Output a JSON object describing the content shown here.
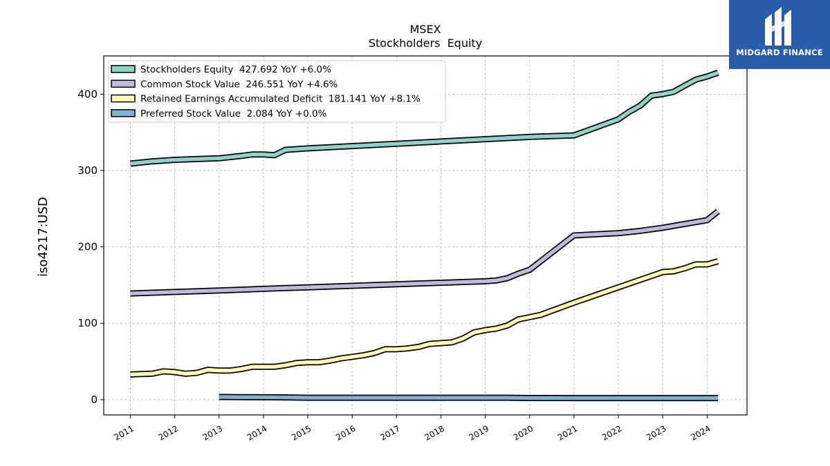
{
  "chart_data": {
    "type": "line",
    "title": "MSEX",
    "subtitle": "Stockholders  Equity",
    "ylabel": "iso4217:USD",
    "xlabel": "",
    "xlim": [
      2010.4,
      2024.9
    ],
    "ylim": [
      -20,
      450
    ],
    "x_ticks": [
      "2011",
      "2012",
      "2013",
      "2014",
      "2015",
      "2016",
      "2017",
      "2018",
      "2019",
      "2020",
      "2021",
      "2022",
      "2023",
      "2024"
    ],
    "y_ticks": [
      0,
      100,
      200,
      300,
      400
    ],
    "grid": true,
    "legend_position": "top-left",
    "series": [
      {
        "name": "Stockholders Equity",
        "legend_label": "Stockholders Equity  427.692 YoY +6.0%",
        "color": "#8dd3c7",
        "x": [
          "2010-12-31",
          "2011-06-30",
          "2011-12-31",
          "2012-06-30",
          "2012-12-31",
          "2013-06-30",
          "2013-09-30",
          "2013-12-31",
          "2014-03-31",
          "2014-06-30",
          "2014-12-31",
          "2015-12-31",
          "2016-12-31",
          "2017-12-31",
          "2018-12-31",
          "2019-12-31",
          "2020-12-31",
          "2021-12-31",
          "2022-03-31",
          "2022-06-30",
          "2022-09-30",
          "2022-12-31",
          "2023-03-31",
          "2023-06-30",
          "2023-09-30",
          "2023-12-31",
          "2024-03-31"
        ],
        "y": [
          309,
          312,
          314,
          315,
          316,
          319,
          321,
          321,
          320,
          327,
          329,
          332,
          335,
          338,
          341,
          344,
          346,
          367,
          377,
          385,
          398,
          400,
          403,
          411,
          419,
          423,
          428
        ]
      },
      {
        "name": "Common Stock Value",
        "legend_label": "Common Stock Value  246.551 YoY +4.6%",
        "color": "#bebada",
        "x": [
          "2010-12-31",
          "2011-12-31",
          "2012-12-31",
          "2013-06-30",
          "2013-12-31",
          "2014-06-30",
          "2014-12-31",
          "2015-12-31",
          "2016-12-31",
          "2017-12-31",
          "2018-12-31",
          "2019-03-31",
          "2019-06-30",
          "2019-09-30",
          "2019-12-31",
          "2020-12-31",
          "2021-12-31",
          "2022-06-30",
          "2022-12-31",
          "2023-06-30",
          "2023-12-31",
          "2024-03-31"
        ],
        "y": [
          139,
          141,
          143,
          144,
          145,
          146,
          147,
          149,
          151,
          153,
          155,
          156,
          159,
          165,
          170,
          215,
          218,
          221,
          225,
          230,
          235,
          246.551
        ]
      },
      {
        "name": "Retained Earnings Accumulated Deficit",
        "legend_label": "Retained Earnings Accumulated Deficit  181.141 YoY +8.1%",
        "color": "#ffffb3",
        "x": [
          "2010-12-31",
          "2011-06-30",
          "2011-09-30",
          "2011-12-31",
          "2012-03-31",
          "2012-06-30",
          "2012-09-30",
          "2012-12-31",
          "2013-03-31",
          "2013-06-30",
          "2013-09-30",
          "2013-12-31",
          "2014-03-31",
          "2014-06-30",
          "2014-09-30",
          "2014-12-31",
          "2015-03-31",
          "2015-06-30",
          "2015-09-30",
          "2015-12-31",
          "2016-03-31",
          "2016-06-30",
          "2016-09-30",
          "2016-12-31",
          "2017-03-31",
          "2017-06-30",
          "2017-09-30",
          "2017-12-31",
          "2018-03-31",
          "2018-06-30",
          "2018-09-30",
          "2018-12-31",
          "2019-03-31",
          "2019-06-30",
          "2019-09-30",
          "2019-12-31",
          "2020-03-31",
          "2020-12-31",
          "2021-12-31",
          "2022-12-31",
          "2023-03-31",
          "2023-06-30",
          "2023-09-30",
          "2023-12-31",
          "2024-03-31"
        ],
        "y": [
          33,
          34,
          37,
          36,
          34,
          35,
          39,
          38,
          38,
          40,
          43,
          43,
          43,
          45,
          48,
          49,
          49,
          51,
          54,
          56,
          58,
          61,
          66,
          66,
          67,
          69,
          73,
          74,
          75,
          80,
          88,
          91,
          93,
          97,
          105,
          108,
          111,
          127,
          147,
          167,
          168,
          172,
          177,
          177,
          181.141
        ]
      },
      {
        "name": "Preferred Stock Value",
        "legend_label": "Preferred Stock Value  2.084 YoY +0.0%",
        "color": "#80b1d3",
        "x": [
          "2012-12-31",
          "2013-06-30",
          "2013-12-31",
          "2014-06-30",
          "2014-12-31",
          "2015-12-31",
          "2016-12-31",
          "2017-12-31",
          "2018-12-31",
          "2019-06-30",
          "2019-12-31",
          "2020-12-31",
          "2021-12-31",
          "2022-12-31",
          "2023-12-31",
          "2024-03-31"
        ],
        "y": [
          3.5,
          3.3,
          3.1,
          3.0,
          2.5,
          2.5,
          2.5,
          2.5,
          2.5,
          2.5,
          2.1,
          2.084,
          2.084,
          2.084,
          2.084,
          2.084
        ]
      }
    ]
  },
  "logo": {
    "name": "MIDGARD FINANCE"
  }
}
